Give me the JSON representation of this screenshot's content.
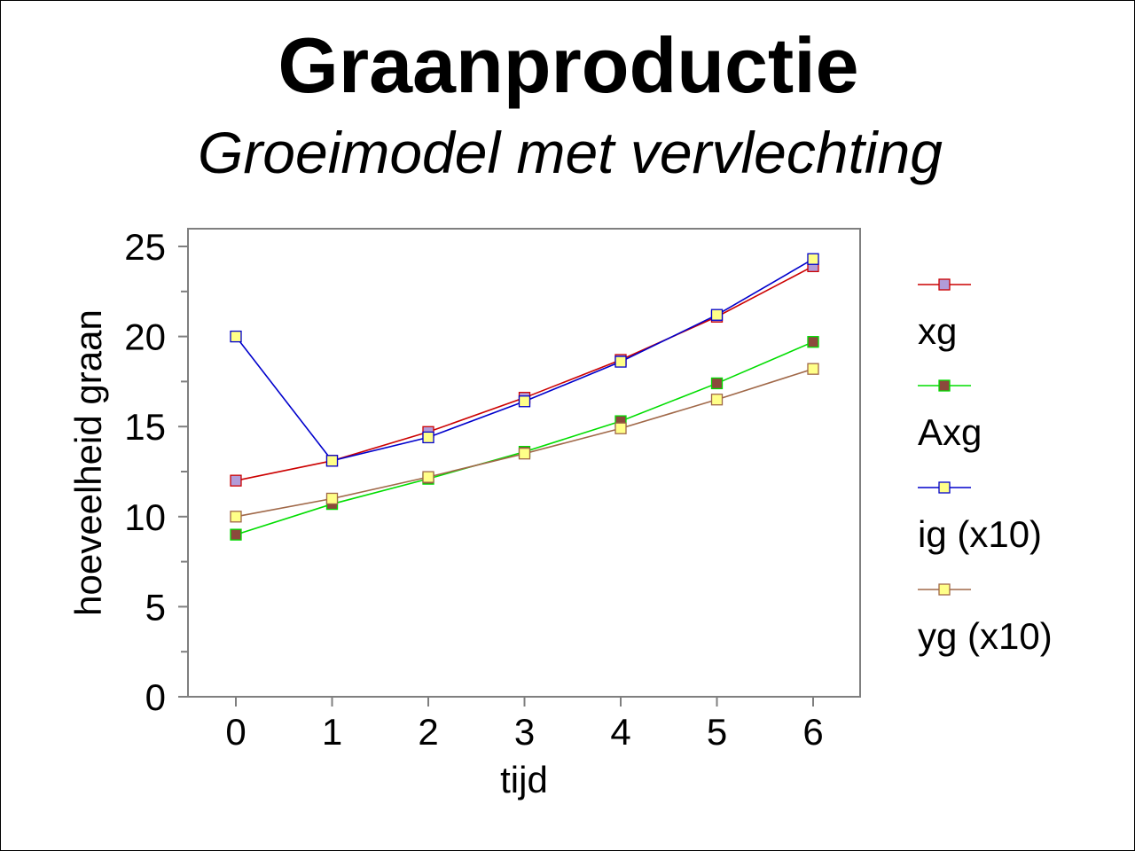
{
  "chart_data": {
    "type": "line",
    "title": "Graanproductie",
    "subtitle": "Groeimodel met vervlechting",
    "xlabel": "tijd",
    "ylabel": "hoeveelheid graan",
    "x": [
      0,
      1,
      2,
      3,
      4,
      5,
      6
    ],
    "xlim": [
      -0.5,
      6.5
    ],
    "ylim": [
      0,
      26
    ],
    "x_ticks": [
      "0",
      "1",
      "2",
      "3",
      "4",
      "5",
      "6"
    ],
    "y_ticks": [
      "0",
      "5",
      "10",
      "15",
      "20",
      "25"
    ],
    "y_minor_ticks": [
      2.5,
      7.5,
      12.5,
      17.5,
      22.5
    ],
    "grid": false,
    "legend_position": "right",
    "series": [
      {
        "name": "xg",
        "values": [
          12.0,
          13.1,
          14.7,
          16.6,
          18.7,
          21.1,
          23.9
        ],
        "line_color": "#cc0000",
        "marker_color": "#b19cd9"
      },
      {
        "name": "Axg",
        "values": [
          9.0,
          10.7,
          12.1,
          13.6,
          15.3,
          17.4,
          19.7
        ],
        "line_color": "#00dd00",
        "marker_color": "#8b4a3c"
      },
      {
        "name": "ig (x10)",
        "values": [
          20.0,
          13.1,
          14.4,
          16.4,
          18.6,
          21.2,
          24.3
        ],
        "line_color": "#0000cc",
        "marker_color": "#ffff88"
      },
      {
        "name": "yg (x10)",
        "values": [
          10.0,
          11.0,
          12.2,
          13.5,
          14.9,
          16.5,
          18.2
        ],
        "line_color": "#a06848",
        "marker_color": "#ffff88"
      }
    ]
  }
}
